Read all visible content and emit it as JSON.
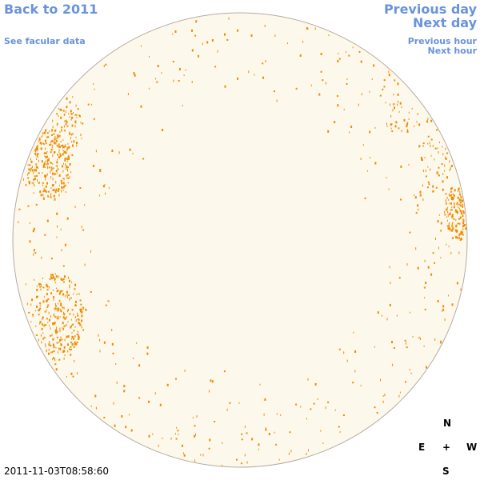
{
  "nav": {
    "back_year": "Back to 2011",
    "facular_data": "See facular data",
    "previous_day": "Previous day",
    "next_day": "Next day",
    "previous_hour": "Previous hour",
    "next_hour": "Next hour"
  },
  "compass": {
    "north": "N",
    "east": "E",
    "center": "+",
    "west": "W",
    "south": "S"
  },
  "timestamp": "2011-11-03T08:58:60"
}
